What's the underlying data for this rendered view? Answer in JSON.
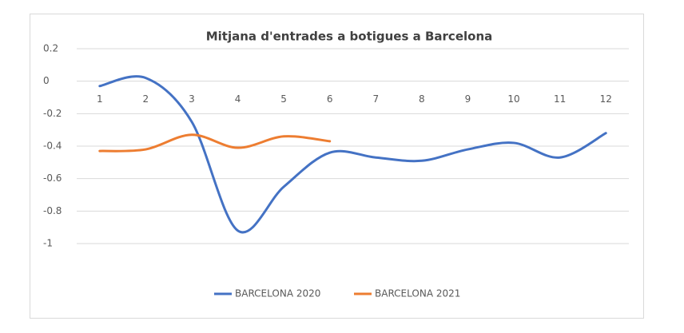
{
  "chart_data": {
    "type": "line",
    "title": "Mitjana d'entrades a botigues a Barcelona",
    "x": [
      1,
      2,
      3,
      4,
      5,
      6,
      7,
      8,
      9,
      10,
      11,
      12
    ],
    "series": [
      {
        "name": "BARCELONA 2020",
        "color": "#4472c4",
        "values": [
          -0.03,
          0.02,
          -0.25,
          -0.92,
          -0.65,
          -0.44,
          -0.47,
          -0.49,
          -0.42,
          -0.38,
          -0.47,
          -0.32
        ]
      },
      {
        "name": "BARCELONA 2021",
        "color": "#ed7d31",
        "values": [
          -0.43,
          -0.42,
          -0.33,
          -0.41,
          -0.34,
          -0.37,
          null,
          null,
          null,
          null,
          null,
          null
        ]
      }
    ],
    "ylim": [
      -1,
      0.2
    ],
    "yticks": [
      0.2,
      0,
      -0.2,
      -0.4,
      -0.6,
      -0.8,
      -1
    ],
    "grid": true,
    "smooth": true,
    "legend": "bottom"
  }
}
